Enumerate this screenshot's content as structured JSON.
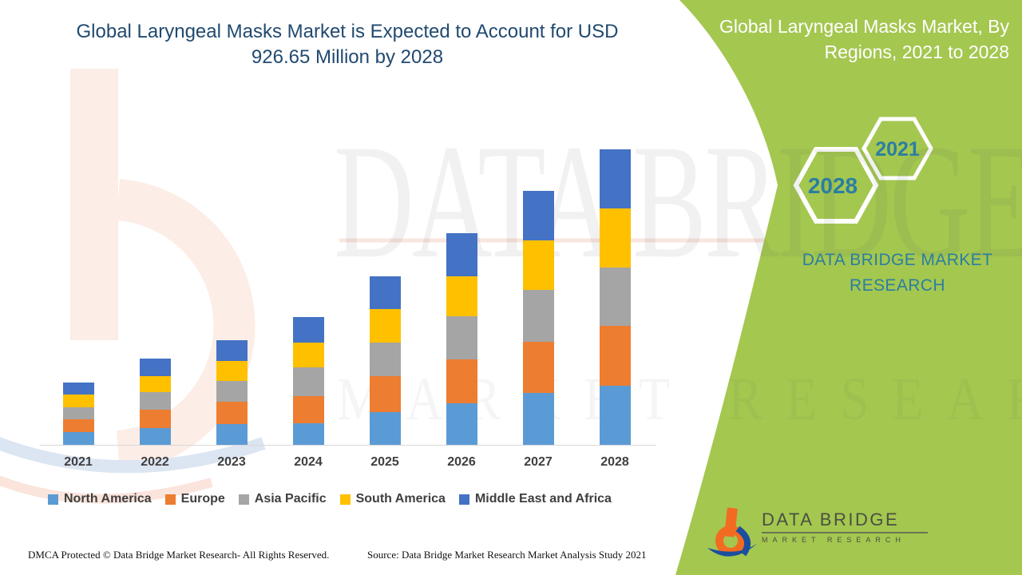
{
  "header": {
    "title": "Global Laryngeal Masks Market is Expected to Account for USD 926.65 Million by 2028"
  },
  "side_panel": {
    "title": "Global Laryngeal Masks Market, By Regions, 2021 to 2028",
    "hexagon_small": "2021",
    "hexagon_large": "2028",
    "brand_text": "DATA BRIDGE MARKET RESEARCH"
  },
  "chart_data": {
    "type": "bar",
    "stacked": true,
    "title": "Global Laryngeal Masks Market is Expected to Account for USD 926.65 Million by 2028",
    "units": "USD Million",
    "categories": [
      "2021",
      "2022",
      "2023",
      "2024",
      "2025",
      "2026",
      "2027",
      "2028"
    ],
    "series": [
      {
        "name": "North America",
        "color": "#5B9BD5",
        "values": [
          40,
          52,
          64,
          68,
          104,
          130,
          162,
          185
        ]
      },
      {
        "name": "Europe",
        "color": "#ED7D31",
        "values": [
          41,
          57,
          70,
          85,
          112,
          137,
          162,
          187
        ]
      },
      {
        "name": "Asia Pacific",
        "color": "#A5A5A5",
        "values": [
          37,
          57,
          65,
          90,
          105,
          137,
          162,
          184
        ]
      },
      {
        "name": "South America",
        "color": "#FFC000",
        "values": [
          40,
          48,
          64,
          77,
          104,
          125,
          155,
          184
        ]
      },
      {
        "name": "Middle East and Africa",
        "color": "#4472C4",
        "values": [
          36,
          55,
          65,
          80,
          105,
          134,
          155,
          186.65
        ]
      }
    ],
    "totals_by_year": [
      194,
      269,
      328,
      400,
      530,
      663,
      796,
      926.65
    ],
    "ylim": [
      0,
      926.65
    ],
    "grid": false,
    "legend_position": "bottom"
  },
  "watermark": {
    "line1": "DATA BRIDGE",
    "line2": "MARKET RESEARCH"
  },
  "footer": {
    "dmca": "DMCA Protected © Data Bridge Market Research- All Rights Reserved.",
    "source": "Source: Data Bridge Market Research Market Analysis Study 2021"
  },
  "logo": {
    "name": "DATA BRIDGE",
    "subname": "MARKET RESEARCH"
  },
  "colors": {
    "panel_green": "#A4C750",
    "title_navy": "#214A70",
    "teal_text": "#2B7EA1",
    "axis_line": "#D8D8D8",
    "label_gray": "#3F3F3F"
  }
}
